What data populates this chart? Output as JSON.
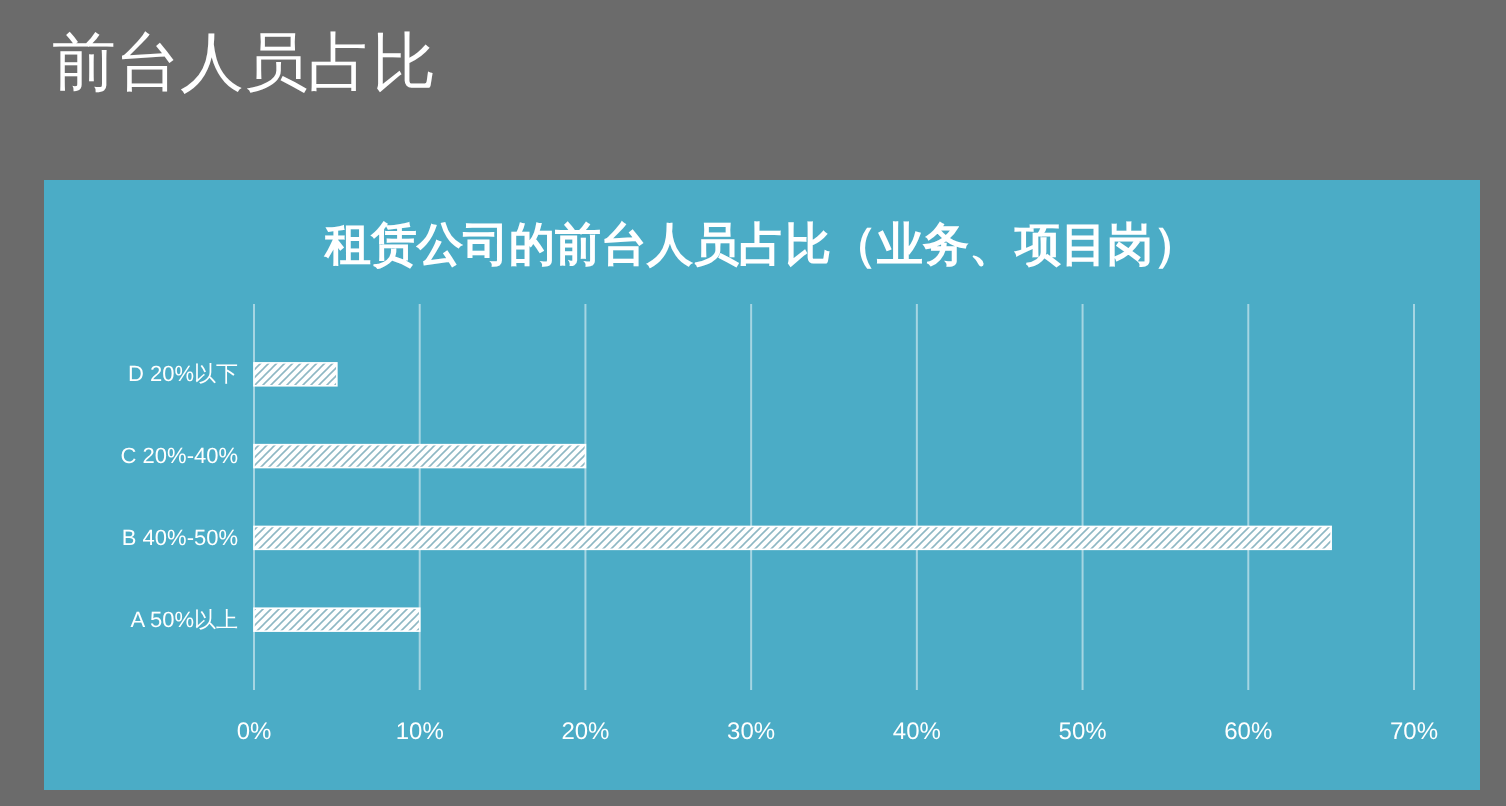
{
  "chart_data": {
    "type": "bar",
    "orientation": "horizontal",
    "title": "前台人员占比",
    "subtitle": "租赁公司的前台人员占比（业务、项目岗）",
    "categories": [
      "D 20%以下",
      "C 20%-40%",
      "B 40%-50%",
      "A 50%以上"
    ],
    "values": [
      5,
      20,
      65,
      10
    ],
    "color": "#ffffff",
    "xlim": [
      0,
      70
    ],
    "xticks": [
      {
        "value": 0,
        "label": "0%"
      },
      {
        "value": 10,
        "label": "10%"
      },
      {
        "value": 20,
        "label": "20%"
      },
      {
        "value": 30,
        "label": "30%"
      },
      {
        "value": 40,
        "label": "40%"
      },
      {
        "value": 50,
        "label": "50%"
      },
      {
        "value": 60,
        "label": "60%"
      },
      {
        "value": 70,
        "label": "70%"
      }
    ],
    "grid": "x"
  }
}
